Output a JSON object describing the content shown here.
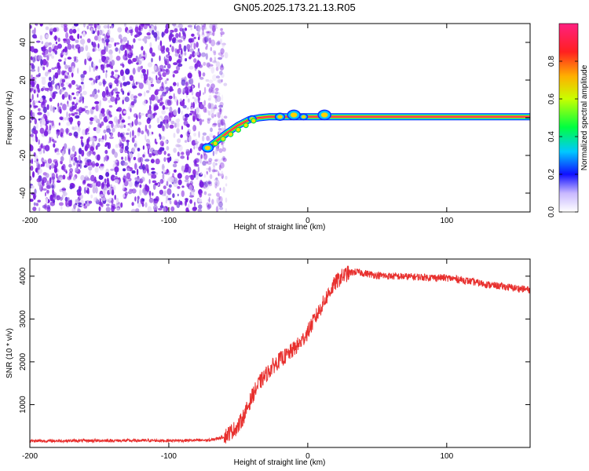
{
  "title": "GN05.2025.173.21.13.R05",
  "chart_data": [
    {
      "type": "heatmap",
      "xlabel": "Height of straight line (km)",
      "ylabel": "Frequency (Hz)",
      "xlim": [
        -200,
        160
      ],
      "ylim": [
        -50,
        50
      ],
      "xticks": [
        -200,
        -100,
        0,
        100
      ],
      "yticks": [
        -40,
        -20,
        0,
        20,
        40
      ],
      "noise_region_x": [
        -200,
        -62
      ],
      "signal_track": [
        {
          "x": -72,
          "y": -16
        },
        {
          "x": -65,
          "y": -12
        },
        {
          "x": -58,
          "y": -8
        },
        {
          "x": -50,
          "y": -4
        },
        {
          "x": -42,
          "y": -1
        },
        {
          "x": -35,
          "y": 0
        },
        {
          "x": -28,
          "y": 0.5
        },
        {
          "x": 160,
          "y": 0.5
        }
      ],
      "colorbar": {
        "label": "Normalized spectral amplitude",
        "range": [
          0,
          1
        ],
        "ticks": [
          "0.0",
          "0.2",
          "0.4",
          "0.6",
          "0.8"
        ]
      }
    },
    {
      "type": "line",
      "xlabel": "Height of straight line (km)",
      "ylabel": "SNR (10 * v/v)",
      "xlim": [
        -200,
        160
      ],
      "ylim": [
        0,
        4400
      ],
      "xticks": [
        -200,
        -100,
        0,
        100
      ],
      "yticks": [
        1000,
        2000,
        3000,
        4000
      ],
      "series": [
        {
          "color": "#e8302e",
          "x": [
            -200,
            -150,
            -100,
            -70,
            -60,
            -50,
            -45,
            -40,
            -35,
            -30,
            -25,
            -20,
            -15,
            -10,
            -5,
            0,
            5,
            10,
            15,
            20,
            25,
            30,
            35,
            40,
            50,
            60,
            70,
            80,
            90,
            100,
            110,
            120,
            130,
            140,
            150,
            160
          ],
          "y": [
            150,
            160,
            160,
            170,
            250,
            500,
            800,
            1200,
            1500,
            1700,
            1900,
            2050,
            2150,
            2300,
            2450,
            2700,
            3000,
            3300,
            3600,
            3850,
            4000,
            4080,
            4100,
            4070,
            4020,
            4000,
            3990,
            3980,
            3970,
            3960,
            3920,
            3860,
            3800,
            3760,
            3720,
            3680
          ]
        }
      ]
    }
  ]
}
